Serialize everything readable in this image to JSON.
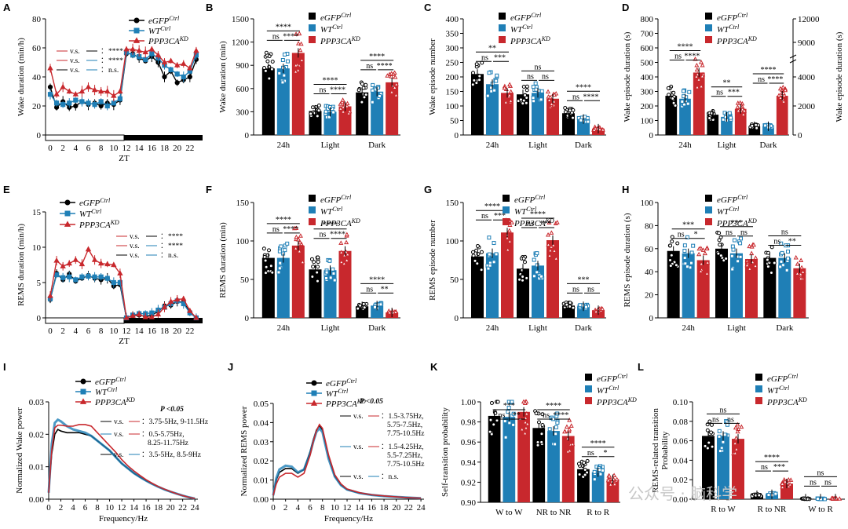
{
  "colors": {
    "eGFP": "#000000",
    "WT": "#1f7fb6",
    "KD": "#c8282d"
  },
  "legend": {
    "eGFP": "eGFP",
    "eGFP_sup": "Ctrl",
    "WT": "WT",
    "WT_sup": "Ctrl",
    "KD": "PPP3CA",
    "KD_sup": "KD"
  },
  "panel_labels": [
    "A",
    "B",
    "C",
    "D",
    "E",
    "F",
    "G",
    "H",
    "I",
    "J",
    "K",
    "L"
  ],
  "watermark": "公众号 · 脑科学",
  "chart_data": [
    {
      "id": "A",
      "type": "line",
      "ylabel": "Wake duration (min/h)",
      "xlabel": "ZT",
      "ylim": [
        0,
        80
      ],
      "yticks": [
        0,
        20,
        40,
        60,
        80
      ],
      "xticks": [
        0,
        2,
        4,
        6,
        8,
        10,
        12,
        14,
        16,
        18,
        20,
        22
      ],
      "x": [
        0,
        1,
        2,
        3,
        4,
        5,
        6,
        7,
        8,
        9,
        10,
        11,
        12,
        13,
        14,
        15,
        16,
        17,
        18,
        19,
        20,
        21,
        22,
        23
      ],
      "series": [
        {
          "name": "eGFP",
          "values": [
            33,
            19,
            23,
            19,
            20,
            23,
            21,
            22,
            20,
            22,
            21,
            24,
            56,
            56,
            53,
            51,
            54,
            50,
            40,
            44,
            36,
            38,
            40,
            52
          ]
        },
        {
          "name": "WT",
          "values": [
            28,
            22,
            21,
            22,
            24,
            23,
            22,
            21,
            23,
            20,
            22,
            25,
            57,
            55,
            54,
            52,
            56,
            53,
            48,
            45,
            42,
            40,
            44,
            55
          ]
        },
        {
          "name": "KD",
          "values": [
            46,
            28,
            33,
            30,
            28,
            30,
            33,
            31,
            30,
            30,
            27,
            30,
            59,
            59,
            58,
            57,
            59,
            55,
            50,
            51,
            48,
            49,
            46,
            58
          ]
        }
      ],
      "notes": [
        "v.s.",
        "v.s.",
        "v.s.",
        "****",
        "****",
        "n.s."
      ]
    },
    {
      "id": "B",
      "type": "bar",
      "ylabel": "Wake duration (min)",
      "categories": [
        "24h",
        "Light",
        "Dark"
      ],
      "ylim": [
        0,
        1500
      ],
      "yticks": [
        0,
        300,
        600,
        900,
        1200,
        1500
      ],
      "series": [
        {
          "name": "eGFP",
          "values": [
            860,
            310,
            550
          ]
        },
        {
          "name": "WT",
          "values": [
            860,
            300,
            560
          ]
        },
        {
          "name": "KD",
          "values": [
            1060,
            370,
            680
          ]
        }
      ],
      "significance": [
        [
          "****",
          "ns",
          "****"
        ],
        [
          "****",
          "ns",
          "****"
        ],
        [
          "****",
          "ns",
          "****"
        ]
      ]
    },
    {
      "id": "C",
      "type": "bar",
      "ylabel": "Wake episode number",
      "categories": [
        "24h",
        "Light",
        "Dark"
      ],
      "ylim": [
        0,
        400
      ],
      "yticks": [
        0,
        50,
        100,
        150,
        200,
        250,
        300,
        350,
        400
      ],
      "series": [
        {
          "name": "eGFP",
          "values": [
            210,
            140,
            75
          ]
        },
        {
          "name": "WT",
          "values": [
            175,
            145,
            55
          ]
        },
        {
          "name": "KD",
          "values": [
            145,
            125,
            22
          ]
        }
      ],
      "significance": [
        [
          "**",
          "ns",
          "***"
        ],
        [
          "ns",
          "ns",
          "ns"
        ],
        [
          "****",
          "ns",
          "****"
        ]
      ]
    },
    {
      "id": "D",
      "type": "bar",
      "ylabel": "Wake episode duration (s)",
      "ylabel_right": "Wake episode duration (s)",
      "categories": [
        "24h",
        "Light",
        "Dark"
      ],
      "ylim": [
        0,
        800
      ],
      "yticks": [
        0,
        100,
        200,
        300,
        400,
        500,
        600,
        700,
        800
      ],
      "right_ticks": [
        "0",
        "2000",
        "4000",
        "9000",
        "12000"
      ],
      "series": [
        {
          "name": "eGFP",
          "values": [
            270,
            140,
            60
          ]
        },
        {
          "name": "WT",
          "values": [
            250,
            125,
            60
          ]
        },
        {
          "name": "KD",
          "values": [
            430,
            180,
            270
          ]
        }
      ],
      "significance": [
        [
          "****",
          "ns",
          "****"
        ],
        [
          "**",
          "ns",
          "***"
        ],
        [
          "****",
          "ns",
          "****"
        ]
      ]
    },
    {
      "id": "E",
      "type": "line",
      "ylabel": "REMS duration (min/h)",
      "xlabel": "ZT",
      "ylim": [
        0,
        15
      ],
      "yticks": [
        0,
        5,
        10,
        15
      ],
      "xticks": [
        0,
        2,
        4,
        6,
        8,
        10,
        12,
        14,
        16,
        18,
        20,
        22
      ],
      "x": [
        0,
        1,
        2,
        3,
        4,
        5,
        6,
        7,
        8,
        9,
        10,
        11,
        12,
        13,
        14,
        15,
        16,
        17,
        18,
        19,
        20,
        21,
        22,
        23
      ],
      "series": [
        {
          "name": "eGFP",
          "values": [
            2.6,
            6.3,
            5.4,
            6.2,
            5.2,
            5.6,
            6.0,
            5.6,
            5.4,
            5.6,
            4.5,
            4.7,
            0.0,
            0.3,
            0.4,
            0.2,
            0.4,
            0.9,
            1.7,
            1.8,
            2.3,
            2.2,
            0.8,
            0.0
          ]
        },
        {
          "name": "WT",
          "values": [
            2.7,
            6.1,
            5.7,
            5.8,
            5.4,
            5.8,
            5.9,
            5.8,
            5.8,
            5.6,
            5.0,
            5.0,
            0.0,
            0.4,
            0.6,
            0.6,
            0.7,
            1.1,
            1.5,
            2.0,
            2.4,
            2.0,
            0.7,
            0.0
          ]
        },
        {
          "name": "KD",
          "values": [
            3.1,
            8.1,
            7.3,
            7.7,
            8.2,
            7.6,
            9.7,
            8.2,
            7.7,
            7.6,
            7.5,
            6.3,
            0.0,
            0.3,
            0.5,
            0.1,
            0.1,
            0.5,
            1.5,
            2.3,
            2.6,
            2.7,
            1.0,
            0.0
          ]
        }
      ],
      "notes": [
        "v.s.",
        "v.s.",
        "v.s.",
        "****",
        "****",
        "n.s."
      ]
    },
    {
      "id": "F",
      "type": "bar",
      "ylabel": "REMS duration (min)",
      "categories": [
        "24h",
        "Light",
        "Dark"
      ],
      "ylim": [
        0,
        150
      ],
      "yticks": [
        0,
        50,
        100,
        150
      ],
      "series": [
        {
          "name": "eGFP",
          "values": [
            78,
            63,
            15
          ]
        },
        {
          "name": "WT",
          "values": [
            78,
            62,
            16
          ]
        },
        {
          "name": "KD",
          "values": [
            94,
            87,
            7
          ]
        }
      ],
      "significance": [
        [
          "****",
          "ns",
          "****"
        ],
        [
          "****",
          "ns",
          "****"
        ],
        [
          "****",
          "ns",
          "**"
        ]
      ]
    },
    {
      "id": "G",
      "type": "bar",
      "ylabel": "REMS episode number",
      "categories": [
        "24h",
        "Light",
        "Dark"
      ],
      "ylim": [
        0,
        150
      ],
      "yticks": [
        0,
        50,
        100,
        150
      ],
      "series": [
        {
          "name": "eGFP",
          "values": [
            80,
            64,
            16
          ]
        },
        {
          "name": "WT",
          "values": [
            84,
            68,
            15
          ]
        },
        {
          "name": "KD",
          "values": [
            111,
            101,
            10
          ]
        }
      ],
      "significance": [
        [
          "****",
          "ns",
          "***"
        ],
        [
          "****",
          "ns",
          "***"
        ],
        [
          "***",
          "ns",
          "ns"
        ]
      ]
    },
    {
      "id": "H",
      "type": "bar",
      "ylabel": "REMS episode duration (s)",
      "categories": [
        "24h",
        "Light",
        "Dark"
      ],
      "ylim": [
        0,
        100
      ],
      "yticks": [
        0,
        20,
        40,
        60,
        80,
        100
      ],
      "series": [
        {
          "name": "eGFP",
          "values": [
            58,
            60,
            52
          ]
        },
        {
          "name": "WT",
          "values": [
            56,
            56,
            52
          ]
        },
        {
          "name": "KD",
          "values": [
            50,
            51,
            43
          ]
        }
      ],
      "significance": [
        [
          "***",
          "ns",
          "*"
        ],
        [
          "***",
          "ns",
          "ns"
        ],
        [
          "ns",
          "ns",
          "**"
        ]
      ]
    },
    {
      "id": "I",
      "type": "line",
      "ylabel": "Normalized Wake power",
      "xlabel": "Frequency/Hz",
      "ylim": [
        0,
        0.03
      ],
      "yticks": [
        0,
        0.01,
        0.02,
        0.03
      ],
      "xticks": [
        0,
        2,
        4,
        6,
        8,
        10,
        12,
        14,
        16,
        18,
        20,
        22,
        24
      ],
      "x": [
        0,
        0.5,
        1,
        1.5,
        2,
        3,
        4,
        5,
        6,
        7,
        8,
        9,
        10,
        11,
        12,
        13,
        14,
        15,
        16,
        17,
        18,
        19,
        20,
        21,
        22,
        23,
        24
      ],
      "series": [
        {
          "name": "eGFP",
          "values": [
            0.002,
            0.014,
            0.02,
            0.0215,
            0.021,
            0.0205,
            0.0205,
            0.0205,
            0.02,
            0.0195,
            0.018,
            0.0165,
            0.015,
            0.013,
            0.011,
            0.0095,
            0.008,
            0.0068,
            0.0057,
            0.0047,
            0.0038,
            0.003,
            0.0023,
            0.0017,
            0.0011,
            0.0006,
            0.0002
          ]
        },
        {
          "name": "WT",
          "values": [
            0.002,
            0.017,
            0.0235,
            0.0245,
            0.024,
            0.0225,
            0.0215,
            0.021,
            0.0205,
            0.0195,
            0.018,
            0.0165,
            0.015,
            0.013,
            0.011,
            0.0095,
            0.008,
            0.0068,
            0.0057,
            0.0047,
            0.0038,
            0.003,
            0.0023,
            0.0017,
            0.0011,
            0.0006,
            0.0002
          ]
        },
        {
          "name": "KD",
          "values": [
            0.002,
            0.015,
            0.022,
            0.0228,
            0.0228,
            0.0225,
            0.0225,
            0.023,
            0.023,
            0.0225,
            0.0205,
            0.0185,
            0.0165,
            0.0145,
            0.0122,
            0.0103,
            0.0087,
            0.0073,
            0.006,
            0.0049,
            0.0039,
            0.0031,
            0.0024,
            0.0017,
            0.0011,
            0.0006,
            0.0002
          ]
        }
      ],
      "p_label": "P <0.05",
      "comparisons": [
        "v.s.",
        "：3.75-5Hz, 9-11.5Hz",
        "v.s.",
        "：0.5-5.75Hz,",
        "8.25-11.75Hz",
        "v.s.",
        "：3.5-5Hz, 8.5-9Hz"
      ]
    },
    {
      "id": "J",
      "type": "line",
      "ylabel": "Normalized REMS power",
      "xlabel": "Frequency/Hz",
      "ylim": [
        0,
        0.05
      ],
      "yticks": [
        0,
        0.01,
        0.02,
        0.03,
        0.04,
        0.05
      ],
      "xticks": [
        0,
        2,
        4,
        6,
        8,
        10,
        12,
        14,
        16,
        18,
        20,
        22,
        24
      ],
      "x": [
        0,
        0.5,
        1,
        2,
        3,
        4,
        5,
        6,
        6.5,
        7,
        7.5,
        8,
        8.5,
        9,
        10,
        11,
        12,
        14,
        16,
        18,
        20,
        22,
        24
      ],
      "series": [
        {
          "name": "eGFP",
          "values": [
            0.002,
            0.01,
            0.014,
            0.016,
            0.016,
            0.0135,
            0.0155,
            0.025,
            0.031,
            0.036,
            0.0385,
            0.036,
            0.029,
            0.022,
            0.012,
            0.0075,
            0.005,
            0.0032,
            0.0022,
            0.0016,
            0.0012,
            0.0008,
            0.0005
          ]
        },
        {
          "name": "WT",
          "values": [
            0.002,
            0.011,
            0.0155,
            0.0175,
            0.017,
            0.014,
            0.0155,
            0.024,
            0.03,
            0.035,
            0.037,
            0.035,
            0.028,
            0.021,
            0.0118,
            0.0073,
            0.005,
            0.0032,
            0.0022,
            0.0016,
            0.0012,
            0.0008,
            0.0005
          ]
        },
        {
          "name": "KD",
          "values": [
            0.002,
            0.008,
            0.0115,
            0.0135,
            0.0135,
            0.0115,
            0.0135,
            0.023,
            0.03,
            0.0355,
            0.039,
            0.037,
            0.03,
            0.023,
            0.0128,
            0.008,
            0.0053,
            0.0034,
            0.0023,
            0.0017,
            0.0012,
            0.0008,
            0.0005
          ]
        }
      ],
      "p_label": "P <0.05",
      "comparisons": [
        "v.s.",
        "：1.5-3.75Hz,",
        "5.75-7.5Hz,",
        "7.75-10.5Hz",
        "v.s.",
        "：1.5-4.25Hz,",
        "5.5-7.25Hz,",
        "7.75-10.5Hz",
        "v.s.",
        "：n.s."
      ]
    },
    {
      "id": "K",
      "type": "bar",
      "ylabel": "Self-transition probability",
      "categories": [
        "W to W",
        "NR to NR",
        "R to R"
      ],
      "ylim": [
        0.9,
        1.0
      ],
      "yticks": [
        0.9,
        0.92,
        0.94,
        0.96,
        0.98,
        1.0
      ],
      "series": [
        {
          "name": "eGFP",
          "values": [
            0.986,
            0.974,
            0.933
          ]
        },
        {
          "name": "WT",
          "values": [
            0.985,
            0.971,
            0.93
          ]
        },
        {
          "name": "KD",
          "values": [
            0.99,
            0.966,
            0.923
          ]
        }
      ],
      "significance": [
        [
          "***",
          "ns",
          "**"
        ],
        [
          "****",
          "ns",
          "****"
        ],
        [
          "****",
          "ns",
          "*"
        ]
      ]
    },
    {
      "id": "L",
      "type": "bar",
      "ylabel": "REMS-related transition",
      "ylabel2": "Probability",
      "categories": [
        "R to W",
        "R to NR",
        "W to R"
      ],
      "ylim": [
        0,
        0.1
      ],
      "yticks": [
        0.0,
        0.02,
        0.04,
        0.06,
        0.08,
        0.1
      ],
      "series": [
        {
          "name": "eGFP",
          "values": [
            0.065,
            0.004,
            0.0005
          ]
        },
        {
          "name": "WT",
          "values": [
            0.065,
            0.005,
            0.0005
          ]
        },
        {
          "name": "KD",
          "values": [
            0.062,
            0.016,
            0.0005
          ]
        }
      ],
      "significance": [
        [
          "ns",
          "ns",
          "ns"
        ],
        [
          "****",
          "ns",
          "***"
        ],
        [
          "ns",
          "ns",
          "ns"
        ]
      ]
    }
  ]
}
